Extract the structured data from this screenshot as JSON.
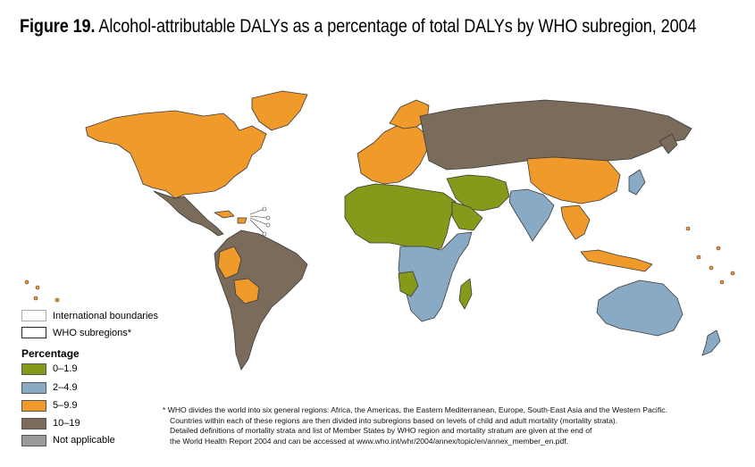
{
  "title": {
    "figure_label": "Figure 19.",
    "text": "Alcohol-attributable DALYs as a percentage of total DALYs by WHO subregion, 2004"
  },
  "legend": {
    "boundary_items": [
      {
        "label": "International boundaries"
      },
      {
        "label": "WHO subregions*"
      }
    ],
    "heading": "Percentage",
    "categories": [
      {
        "label": "0–1.9",
        "color": "#86991a"
      },
      {
        "label": "2–4.9",
        "color": "#89aac4"
      },
      {
        "label": "5–9.9",
        "color": "#ef9a2a"
      },
      {
        "label": "10–19",
        "color": "#7b6b5b"
      },
      {
        "label": "Not applicable",
        "color": "#9a9a9a"
      }
    ]
  },
  "footnote": {
    "line1": "* WHO divides the world into six general regions: Africa, the Americas, the Eastern Mediterranean, Europe, South-East Asia and the Western Pacific.",
    "line2": "Countries within each of these regions are then divided into subregions based on levels of child and adult mortality (mortality strata).",
    "line3": "Detailed definitions of mortality strata and list of Member States by WHO region and mortality stratum are given at the end of",
    "line4": "the World Health Report 2004 and can be accessed at www.who.int/whr/2004/annex/topic/en/annex_member_en.pdf."
  }
}
